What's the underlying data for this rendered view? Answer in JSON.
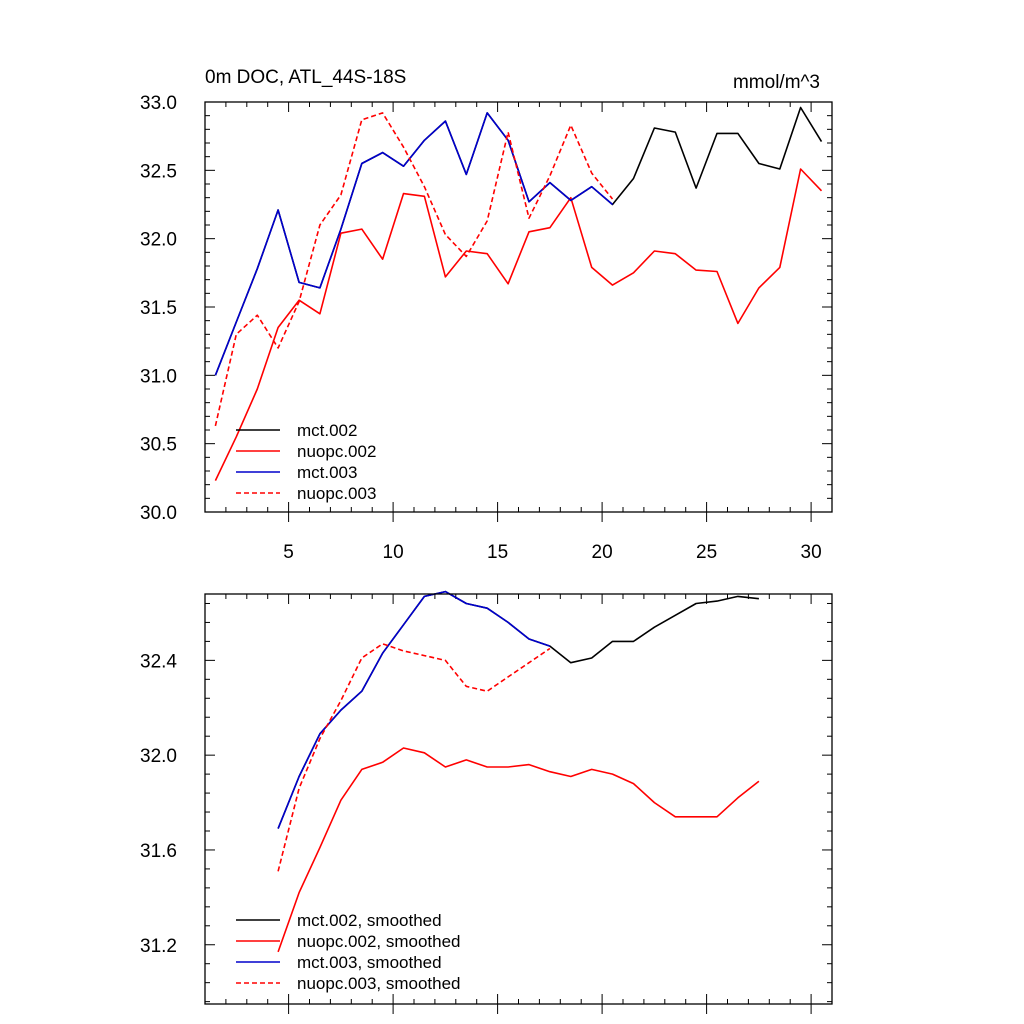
{
  "chart_data": [
    {
      "type": "line",
      "title": "0m DOC, ATL_44S-18S",
      "units": "mmol/m^3",
      "xlabel": "",
      "ylabel": "",
      "xlim": [
        1,
        31
      ],
      "ylim": [
        30.0,
        33.0
      ],
      "xticks": [
        5,
        10,
        15,
        20,
        25,
        30
      ],
      "yticks": [
        30.0,
        30.5,
        31.0,
        31.5,
        32.0,
        32.5,
        33.0
      ],
      "ytick_labels": [
        "30.0",
        "30.5",
        "31.0",
        "31.5",
        "32.0",
        "32.5",
        "33.0"
      ],
      "legend_position": "bottom-left",
      "series": [
        {
          "name": "mct.002",
          "color": "#000000",
          "dash": "solid",
          "x_start": 1.5,
          "values": [
            31.0,
            31.39,
            31.78,
            32.21,
            31.68,
            31.64,
            32.07,
            32.55,
            32.63,
            32.53,
            32.72,
            32.86,
            32.47,
            32.92,
            32.72,
            32.27,
            32.41,
            32.28,
            32.38,
            32.25,
            32.44,
            32.81,
            32.78,
            32.37,
            32.77,
            32.77,
            32.55,
            32.51,
            32.96,
            32.71
          ]
        },
        {
          "name": "nuopc.002",
          "color": "#ff0000",
          "dash": "solid",
          "x_start": 1.5,
          "values": [
            30.23,
            30.55,
            30.9,
            31.35,
            31.55,
            31.45,
            32.04,
            32.07,
            31.85,
            32.33,
            32.31,
            31.72,
            31.91,
            31.89,
            31.67,
            32.05,
            32.08,
            32.3,
            31.79,
            31.66,
            31.75,
            31.91,
            31.89,
            31.77,
            31.76,
            31.38,
            31.64,
            31.79,
            32.51,
            32.35
          ]
        },
        {
          "name": "mct.003",
          "color": "#0000cc",
          "dash": "solid",
          "x_start": 1.5,
          "values": [
            31.0,
            31.39,
            31.78,
            32.21,
            31.68,
            31.64,
            32.07,
            32.55,
            32.63,
            32.53,
            32.72,
            32.86,
            32.47,
            32.92,
            32.72,
            32.27,
            32.41,
            32.28,
            32.38,
            32.25
          ]
        },
        {
          "name": "nuopc.003",
          "color": "#ff0000",
          "dash": "dashed",
          "x_start": 1.5,
          "values": [
            30.63,
            31.3,
            31.44,
            31.2,
            31.54,
            32.1,
            32.32,
            32.87,
            32.92,
            32.67,
            32.38,
            32.03,
            31.87,
            32.13,
            32.78,
            32.15,
            32.46,
            32.83,
            32.48,
            32.29
          ]
        }
      ]
    },
    {
      "type": "line",
      "title": "",
      "xlabel": "",
      "ylabel": "",
      "xlim": [
        1,
        31
      ],
      "ylim": [
        30.95,
        32.68
      ],
      "xticks": [
        5,
        10,
        15,
        20,
        25,
        30
      ],
      "yticks": [
        31.2,
        31.6,
        32.0,
        32.4
      ],
      "ytick_labels": [
        "31.2",
        "31.6",
        "32.0",
        "32.4"
      ],
      "legend_position": "bottom-left",
      "series": [
        {
          "name": "mct.002, smoothed",
          "color": "#000000",
          "dash": "solid",
          "x_start": 4.5,
          "values": [
            31.69,
            31.91,
            32.09,
            32.19,
            32.27,
            32.43,
            32.55,
            32.67,
            32.69,
            32.64,
            32.62,
            32.56,
            32.49,
            32.46,
            32.39,
            32.41,
            32.48,
            32.48,
            32.54,
            32.59,
            32.64,
            32.65,
            32.67,
            32.66
          ]
        },
        {
          "name": "nuopc.002, smoothed",
          "color": "#ff0000",
          "dash": "solid",
          "x_start": 4.5,
          "values": [
            31.17,
            31.42,
            31.61,
            31.81,
            31.94,
            31.97,
            32.03,
            32.01,
            31.95,
            31.98,
            31.95,
            31.95,
            31.96,
            31.93,
            31.91,
            31.94,
            31.92,
            31.88,
            31.8,
            31.74,
            31.74,
            31.74,
            31.82,
            31.89
          ]
        },
        {
          "name": "mct.003, smoothed",
          "color": "#0000cc",
          "dash": "solid",
          "x_start": 4.5,
          "values": [
            31.69,
            31.91,
            32.09,
            32.19,
            32.27,
            32.43,
            32.55,
            32.67,
            32.69,
            32.64,
            32.62,
            32.56,
            32.49,
            32.46
          ]
        },
        {
          "name": "nuopc.003, smoothed",
          "color": "#ff0000",
          "dash": "dashed",
          "x_start": 4.5,
          "values": [
            31.51,
            31.86,
            32.07,
            32.23,
            32.41,
            32.47,
            32.44,
            32.42,
            32.4,
            32.29,
            32.27,
            32.33,
            32.39,
            32.45
          ]
        }
      ]
    }
  ]
}
